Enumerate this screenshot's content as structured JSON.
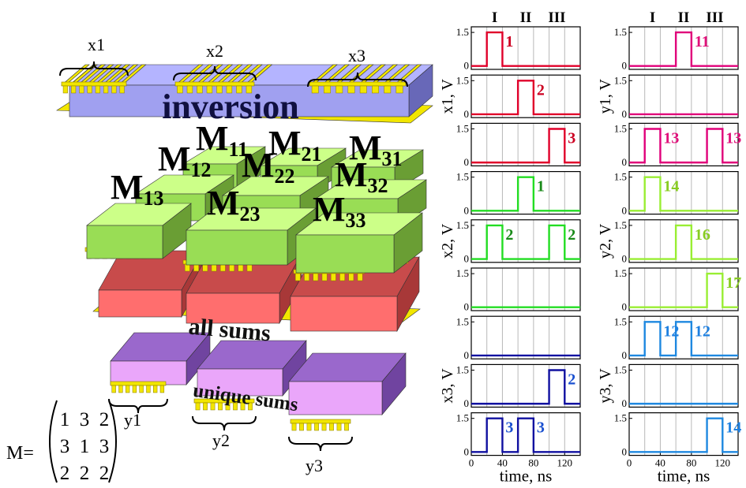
{
  "diagram": {
    "inputs": [
      "x1",
      "x2",
      "x3"
    ],
    "layers": [
      "inversion",
      "all sums",
      "unique sums"
    ],
    "blocks": [
      {
        "base": "M",
        "sub": "11"
      },
      {
        "base": "M",
        "sub": "21"
      },
      {
        "base": "M",
        "sub": "31"
      },
      {
        "base": "M",
        "sub": "12"
      },
      {
        "base": "M",
        "sub": "22"
      },
      {
        "base": "M",
        "sub": "32"
      },
      {
        "base": "M",
        "sub": "13"
      },
      {
        "base": "M",
        "sub": "23"
      },
      {
        "base": "M",
        "sub": "33"
      }
    ],
    "outputs": [
      "y1",
      "y2",
      "y3"
    ],
    "matrix": {
      "name": "M=",
      "rows": [
        [
          1,
          3,
          2
        ],
        [
          3,
          1,
          3
        ],
        [
          2,
          2,
          2
        ]
      ]
    }
  },
  "chart_data": [
    {
      "type": "line",
      "color": "#e0002a",
      "label_color": "#cc0022",
      "xlim": [
        0,
        140
      ],
      "ylim": [
        -0.15,
        1.75
      ],
      "yticks": [
        0,
        1.5
      ],
      "xgrid": [
        20,
        40,
        60,
        80,
        100,
        120
      ],
      "top_ticks": [
        {
          "value": 30,
          "label": "I"
        },
        {
          "value": 70,
          "label": "II"
        },
        {
          "value": 110,
          "label": "III"
        }
      ],
      "x": [
        0,
        20,
        20,
        40,
        40,
        140
      ],
      "values": [
        0,
        0,
        1.5,
        1.5,
        0,
        0
      ],
      "pulse_labels": [
        "1"
      ]
    },
    {
      "type": "line",
      "color": "#e0002a",
      "label_color": "#cc0022",
      "xlim": [
        0,
        140
      ],
      "ylim": [
        -0.15,
        1.75
      ],
      "yticks": [
        0,
        1.5
      ],
      "xgrid": [
        20,
        40,
        60,
        80,
        100,
        120
      ],
      "ylabel": "x1, V",
      "x": [
        0,
        60,
        60,
        80,
        80,
        140
      ],
      "values": [
        0,
        0,
        1.5,
        1.5,
        0,
        0
      ],
      "pulse_labels": [
        "2"
      ]
    },
    {
      "type": "line",
      "color": "#e0002a",
      "label_color": "#cc0022",
      "xlim": [
        0,
        140
      ],
      "ylim": [
        -0.15,
        1.75
      ],
      "yticks": [
        0,
        1.5
      ],
      "xgrid": [
        20,
        40,
        60,
        80,
        100,
        120
      ],
      "x": [
        0,
        100,
        100,
        120,
        120,
        140
      ],
      "values": [
        0,
        0,
        1.5,
        1.5,
        0,
        0
      ],
      "pulse_labels": [
        "3"
      ]
    },
    {
      "type": "line",
      "color": "#22dd22",
      "label_color": "#1a8a1a",
      "xlim": [
        0,
        140
      ],
      "ylim": [
        -0.15,
        1.75
      ],
      "yticks": [
        0,
        1.5
      ],
      "xgrid": [
        20,
        40,
        60,
        80,
        100,
        120
      ],
      "x": [
        0,
        60,
        60,
        80,
        80,
        140
      ],
      "values": [
        0,
        0,
        1.5,
        1.5,
        0,
        0
      ],
      "pulse_labels": [
        "1"
      ]
    },
    {
      "type": "line",
      "color": "#22dd22",
      "label_color": "#1a8a1a",
      "xlim": [
        0,
        140
      ],
      "ylim": [
        -0.15,
        1.75
      ],
      "yticks": [
        0,
        1.5
      ],
      "xgrid": [
        20,
        40,
        60,
        80,
        100,
        120
      ],
      "ylabel": "x2, V",
      "x": [
        0,
        20,
        20,
        40,
        40,
        100,
        100,
        120,
        120,
        140
      ],
      "values": [
        0,
        0,
        1.5,
        1.5,
        0,
        0,
        1.5,
        1.5,
        0,
        0
      ],
      "pulse_labels": [
        "2",
        "2"
      ]
    },
    {
      "type": "line",
      "color": "#22dd22",
      "label_color": "#1a8a1a",
      "xlim": [
        0,
        140
      ],
      "ylim": [
        -0.15,
        1.75
      ],
      "yticks": [
        0,
        1.5
      ],
      "xgrid": [
        20,
        40,
        60,
        80,
        100,
        120
      ],
      "x": [
        0,
        140
      ],
      "values": [
        0,
        0
      ],
      "pulse_labels": []
    },
    {
      "type": "line",
      "color": "#1010a0",
      "label_color": "#1a50d0",
      "xlim": [
        0,
        140
      ],
      "ylim": [
        -0.15,
        1.75
      ],
      "yticks": [
        0,
        1.5
      ],
      "xgrid": [
        20,
        40,
        60,
        80,
        100,
        120
      ],
      "x": [
        0,
        140
      ],
      "values": [
        0,
        0
      ],
      "pulse_labels": []
    },
    {
      "type": "line",
      "color": "#1010a0",
      "label_color": "#1a50d0",
      "xlim": [
        0,
        140
      ],
      "ylim": [
        -0.15,
        1.75
      ],
      "yticks": [
        0,
        1.5
      ],
      "xgrid": [
        20,
        40,
        60,
        80,
        100,
        120
      ],
      "ylabel": "x3, V",
      "x": [
        0,
        100,
        100,
        120,
        120,
        140
      ],
      "values": [
        0,
        0,
        1.5,
        1.5,
        0,
        0
      ],
      "pulse_labels": [
        "2"
      ]
    },
    {
      "type": "line",
      "color": "#1010a0",
      "label_color": "#1a50d0",
      "xlim": [
        0,
        140
      ],
      "ylim": [
        -0.15,
        1.75
      ],
      "yticks": [
        0,
        1.5
      ],
      "xgrid": [
        20,
        40,
        60,
        80,
        100,
        120
      ],
      "xticks": [
        0,
        40,
        80,
        120
      ],
      "xlabel": "time, ns",
      "x": [
        0,
        20,
        20,
        40,
        40,
        60,
        60,
        80,
        80,
        140
      ],
      "values": [
        0,
        0,
        1.5,
        1.5,
        0,
        0,
        1.5,
        1.5,
        0,
        0
      ],
      "pulse_labels": [
        "3",
        "3"
      ]
    },
    {
      "type": "line",
      "color": "#e0007a",
      "label_color": "#e0107a",
      "xlim": [
        0,
        140
      ],
      "ylim": [
        -0.15,
        1.75
      ],
      "yticks": [
        0,
        1.5
      ],
      "xgrid": [
        20,
        40,
        60,
        80,
        100,
        120
      ],
      "top_ticks": [
        {
          "value": 30,
          "label": "I"
        },
        {
          "value": 70,
          "label": "II"
        },
        {
          "value": 110,
          "label": "III"
        }
      ],
      "x": [
        0,
        60,
        60,
        80,
        80,
        140
      ],
      "values": [
        0,
        0,
        1.5,
        1.5,
        0,
        0
      ],
      "pulse_labels": [
        "11"
      ]
    },
    {
      "type": "line",
      "color": "#e0007a",
      "label_color": "#e0107a",
      "xlim": [
        0,
        140
      ],
      "ylim": [
        -0.15,
        1.75
      ],
      "yticks": [
        0,
        1.5
      ],
      "xgrid": [
        20,
        40,
        60,
        80,
        100,
        120
      ],
      "ylabel": "y1, V",
      "x": [
        0,
        140
      ],
      "values": [
        0,
        0
      ],
      "pulse_labels": []
    },
    {
      "type": "line",
      "color": "#e0007a",
      "label_color": "#e0107a",
      "xlim": [
        0,
        140
      ],
      "ylim": [
        -0.15,
        1.75
      ],
      "yticks": [
        0,
        1.5
      ],
      "xgrid": [
        20,
        40,
        60,
        80,
        100,
        120
      ],
      "x": [
        0,
        20,
        20,
        40,
        40,
        100,
        100,
        120,
        120,
        140
      ],
      "values": [
        0,
        0,
        1.5,
        1.5,
        0,
        0,
        1.5,
        1.5,
        0,
        0
      ],
      "pulse_labels": [
        "13",
        "13"
      ]
    },
    {
      "type": "line",
      "color": "#99ee33",
      "label_color": "#88cc22",
      "xlim": [
        0,
        140
      ],
      "ylim": [
        -0.15,
        1.75
      ],
      "yticks": [
        0,
        1.5
      ],
      "xgrid": [
        20,
        40,
        60,
        80,
        100,
        120
      ],
      "x": [
        0,
        20,
        20,
        40,
        40,
        140
      ],
      "values": [
        0,
        0,
        1.5,
        1.5,
        0,
        0
      ],
      "pulse_labels": [
        "14"
      ]
    },
    {
      "type": "line",
      "color": "#99ee33",
      "label_color": "#88cc22",
      "xlim": [
        0,
        140
      ],
      "ylim": [
        -0.15,
        1.75
      ],
      "yticks": [
        0,
        1.5
      ],
      "xgrid": [
        20,
        40,
        60,
        80,
        100,
        120
      ],
      "ylabel": "y2, V",
      "x": [
        0,
        60,
        60,
        80,
        80,
        140
      ],
      "values": [
        0,
        0,
        1.5,
        1.5,
        0,
        0
      ],
      "pulse_labels": [
        "16"
      ]
    },
    {
      "type": "line",
      "color": "#99ee33",
      "label_color": "#88cc22",
      "xlim": [
        0,
        140
      ],
      "ylim": [
        -0.15,
        1.75
      ],
      "yticks": [
        0,
        1.5
      ],
      "xgrid": [
        20,
        40,
        60,
        80,
        100,
        120
      ],
      "x": [
        0,
        100,
        100,
        120,
        120,
        140
      ],
      "values": [
        0,
        0,
        1.5,
        1.5,
        0,
        0
      ],
      "pulse_labels": [
        "17"
      ]
    },
    {
      "type": "line",
      "color": "#1e88e0",
      "label_color": "#1e80e0",
      "xlim": [
        0,
        140
      ],
      "ylim": [
        -0.15,
        1.75
      ],
      "yticks": [
        0,
        1.5
      ],
      "xgrid": [
        20,
        40,
        60,
        80,
        100,
        120
      ],
      "x": [
        0,
        20,
        20,
        40,
        40,
        60,
        60,
        80,
        80,
        140
      ],
      "values": [
        0,
        0,
        1.5,
        1.5,
        0,
        0,
        1.5,
        1.5,
        0,
        0
      ],
      "pulse_labels": [
        "12",
        "12"
      ]
    },
    {
      "type": "line",
      "color": "#1e88e0",
      "label_color": "#1e80e0",
      "xlim": [
        0,
        140
      ],
      "ylim": [
        -0.15,
        1.75
      ],
      "yticks": [
        0,
        1.5
      ],
      "xgrid": [
        20,
        40,
        60,
        80,
        100,
        120
      ],
      "ylabel": "y3, V",
      "x": [
        0,
        140
      ],
      "values": [
        0,
        0
      ],
      "pulse_labels": []
    },
    {
      "type": "line",
      "color": "#1e88e0",
      "label_color": "#1e80e0",
      "xlim": [
        0,
        140
      ],
      "ylim": [
        -0.15,
        1.75
      ],
      "yticks": [
        0,
        1.5
      ],
      "xgrid": [
        20,
        40,
        60,
        80,
        100,
        120
      ],
      "xticks": [
        0,
        40,
        80,
        120
      ],
      "xlabel": "time, ns",
      "x": [
        0,
        100,
        100,
        120,
        120,
        140
      ],
      "values": [
        0,
        0,
        1.5,
        1.5,
        0,
        0
      ],
      "pulse_labels": [
        "14"
      ]
    }
  ]
}
